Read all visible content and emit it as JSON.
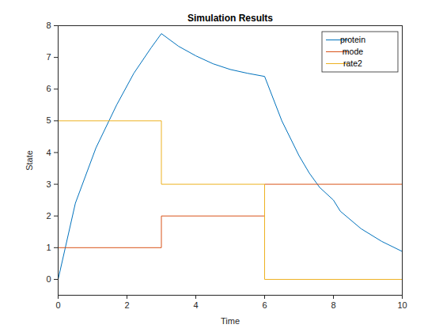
{
  "chart_data": {
    "type": "line",
    "title": "Simulation Results",
    "x_label": "Time",
    "y_label": "State",
    "xlim": [
      0,
      10
    ],
    "xticks": [
      0,
      2,
      4,
      6,
      8,
      10
    ],
    "ylim": [
      -0.5,
      8
    ],
    "yticks": [
      0,
      1,
      2,
      3,
      4,
      5,
      6,
      7,
      8
    ],
    "legend": "northeast",
    "grid": false,
    "series": [
      {
        "name": "protein",
        "color": "#0072bd",
        "x": [
          0,
          0.5,
          1.1,
          1.7,
          2.2,
          2.7,
          3,
          3.5,
          4,
          4.5,
          5,
          5.5,
          6,
          6.5,
          7,
          7.3,
          7.6,
          8,
          8.2,
          8.8,
          9.4,
          10
        ],
        "values": [
          0,
          2.4,
          4.15,
          5.5,
          6.5,
          7.3,
          7.75,
          7.35,
          7.05,
          6.8,
          6.62,
          6.5,
          6.4,
          5.0,
          3.9,
          3.35,
          2.9,
          2.5,
          2.15,
          1.6,
          1.2,
          0.88
        ]
      },
      {
        "name": "mode",
        "color": "#d95319",
        "x": [
          0,
          3,
          3,
          6,
          6,
          10
        ],
        "values": [
          1,
          1,
          2,
          2,
          3,
          3
        ]
      },
      {
        "name": "rate2",
        "color": "#edb120",
        "x": [
          0,
          3,
          3,
          6,
          6,
          10
        ],
        "values": [
          5,
          5,
          3,
          3,
          0,
          0
        ]
      }
    ]
  }
}
